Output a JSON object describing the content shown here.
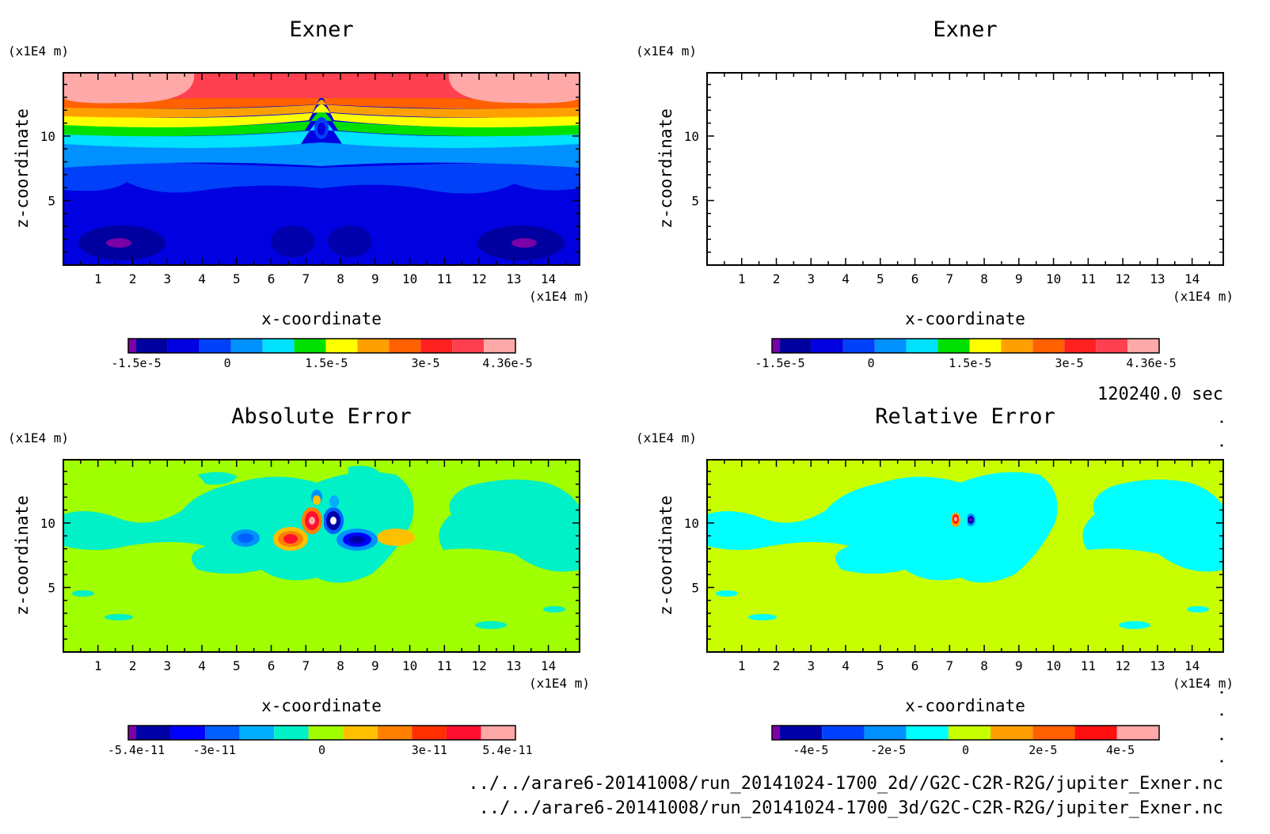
{
  "chart_data": [
    {
      "type": "heatmap",
      "title": "Exner",
      "xlabel": "x-coordinate",
      "ylabel": "z-coordinate",
      "x_unit": "(x1E4 m)",
      "y_unit": "(x1E4 m)",
      "x_ticks": [
        "1",
        "2",
        "3",
        "4",
        "5",
        "6",
        "7",
        "8",
        "9",
        "10",
        "11",
        "12",
        "13",
        "14"
      ],
      "y_ticks": [
        "5",
        "10"
      ],
      "xlim": [
        0,
        14.9
      ],
      "ylim": [
        0,
        14.9
      ],
      "colorbar": {
        "colors": [
          "#7a00a8",
          "#0000a0",
          "#0000e0",
          "#0040f8",
          "#0090ff",
          "#00e0ff",
          "#00e000",
          "#ffff00",
          "#ffa000",
          "#ff6000",
          "#ff2020",
          "#ff4050",
          "#ffa8a8"
        ],
        "labels": [
          "-1.5e-5",
          "0",
          "1.5e-5",
          "3e-5",
          "4.36e-5"
        ],
        "range": [
          -1.5e-05,
          4.36e-05
        ]
      }
    },
    {
      "type": "heatmap",
      "title": "Exner",
      "xlabel": "x-coordinate",
      "ylabel": "z-coordinate",
      "x_unit": "(x1E4 m)",
      "y_unit": "(x1E4 m)",
      "x_ticks": [
        "1",
        "2",
        "3",
        "4",
        "5",
        "6",
        "7",
        "8",
        "9",
        "10",
        "11",
        "12",
        "13",
        "14"
      ],
      "y_ticks": [
        "5",
        "10"
      ],
      "xlim": [
        0,
        14.9
      ],
      "ylim": [
        0,
        14.9
      ],
      "colorbar": {
        "colors": [
          "#7a00a8",
          "#0000a0",
          "#0000e0",
          "#0040f8",
          "#0090ff",
          "#00e0ff",
          "#00e000",
          "#ffff00",
          "#ffa000",
          "#ff6000",
          "#ff2020",
          "#ff4050",
          "#ffa8a8"
        ],
        "labels": [
          "-1.5e-5",
          "0",
          "1.5e-5",
          "3e-5",
          "4.36e-5"
        ],
        "range": [
          -1.5e-05,
          4.36e-05
        ]
      }
    },
    {
      "type": "heatmap",
      "title": "Absolute Error",
      "xlabel": "x-coordinate",
      "ylabel": "z-coordinate",
      "x_unit": "(x1E4 m)",
      "y_unit": "(x1E4 m)",
      "x_ticks": [
        "1",
        "2",
        "3",
        "4",
        "5",
        "6",
        "7",
        "8",
        "9",
        "10",
        "11",
        "12",
        "13",
        "14"
      ],
      "y_ticks": [
        "5",
        "10"
      ],
      "xlim": [
        0,
        14.9
      ],
      "ylim": [
        0,
        14.9
      ],
      "colorbar": {
        "colors": [
          "#8000a8",
          "#0000a8",
          "#0000ff",
          "#0060ff",
          "#00b0ff",
          "#00f0c8",
          "#a0ff00",
          "#ffc000",
          "#ff8000",
          "#ff3000",
          "#ff1030",
          "#ffa8a8"
        ],
        "labels": [
          "-5.4e-11",
          "-3e-11",
          "0",
          "3e-11",
          "5.4e-11"
        ],
        "range": [
          -5.4e-11,
          5.4e-11
        ]
      }
    },
    {
      "type": "heatmap",
      "title": "Relative Error",
      "xlabel": "x-coordinate",
      "ylabel": "z-coordinate",
      "x_unit": "(x1E4 m)",
      "y_unit": "(x1E4 m)",
      "x_ticks": [
        "1",
        "2",
        "3",
        "4",
        "5",
        "6",
        "7",
        "8",
        "9",
        "10",
        "11",
        "12",
        "13",
        "14"
      ],
      "y_ticks": [
        "5",
        "10"
      ],
      "xlim": [
        0,
        14.9
      ],
      "ylim": [
        0,
        14.9
      ],
      "colorbar": {
        "colors": [
          "#8000a8",
          "#0000a8",
          "#0040ff",
          "#0090ff",
          "#00ffff",
          "#c8ff00",
          "#ffa000",
          "#ff6000",
          "#ff1010",
          "#ffa8a8"
        ],
        "labels": [
          "-4e-5",
          "-2e-5",
          "0",
          "2e-5",
          "4e-5"
        ],
        "range": [
          -5e-05,
          5e-05
        ]
      }
    }
  ],
  "time_label": "120240.0 sec",
  "footer": {
    "line1": "../../arare6-20141008/run_20141024-1700_2d//G2C-C2R-R2G/jupiter_Exner.nc",
    "line2": "../../arare6-20141008/run_20141024-1700_3d/G2C-C2R-R2G/jupiter_Exner.nc"
  }
}
